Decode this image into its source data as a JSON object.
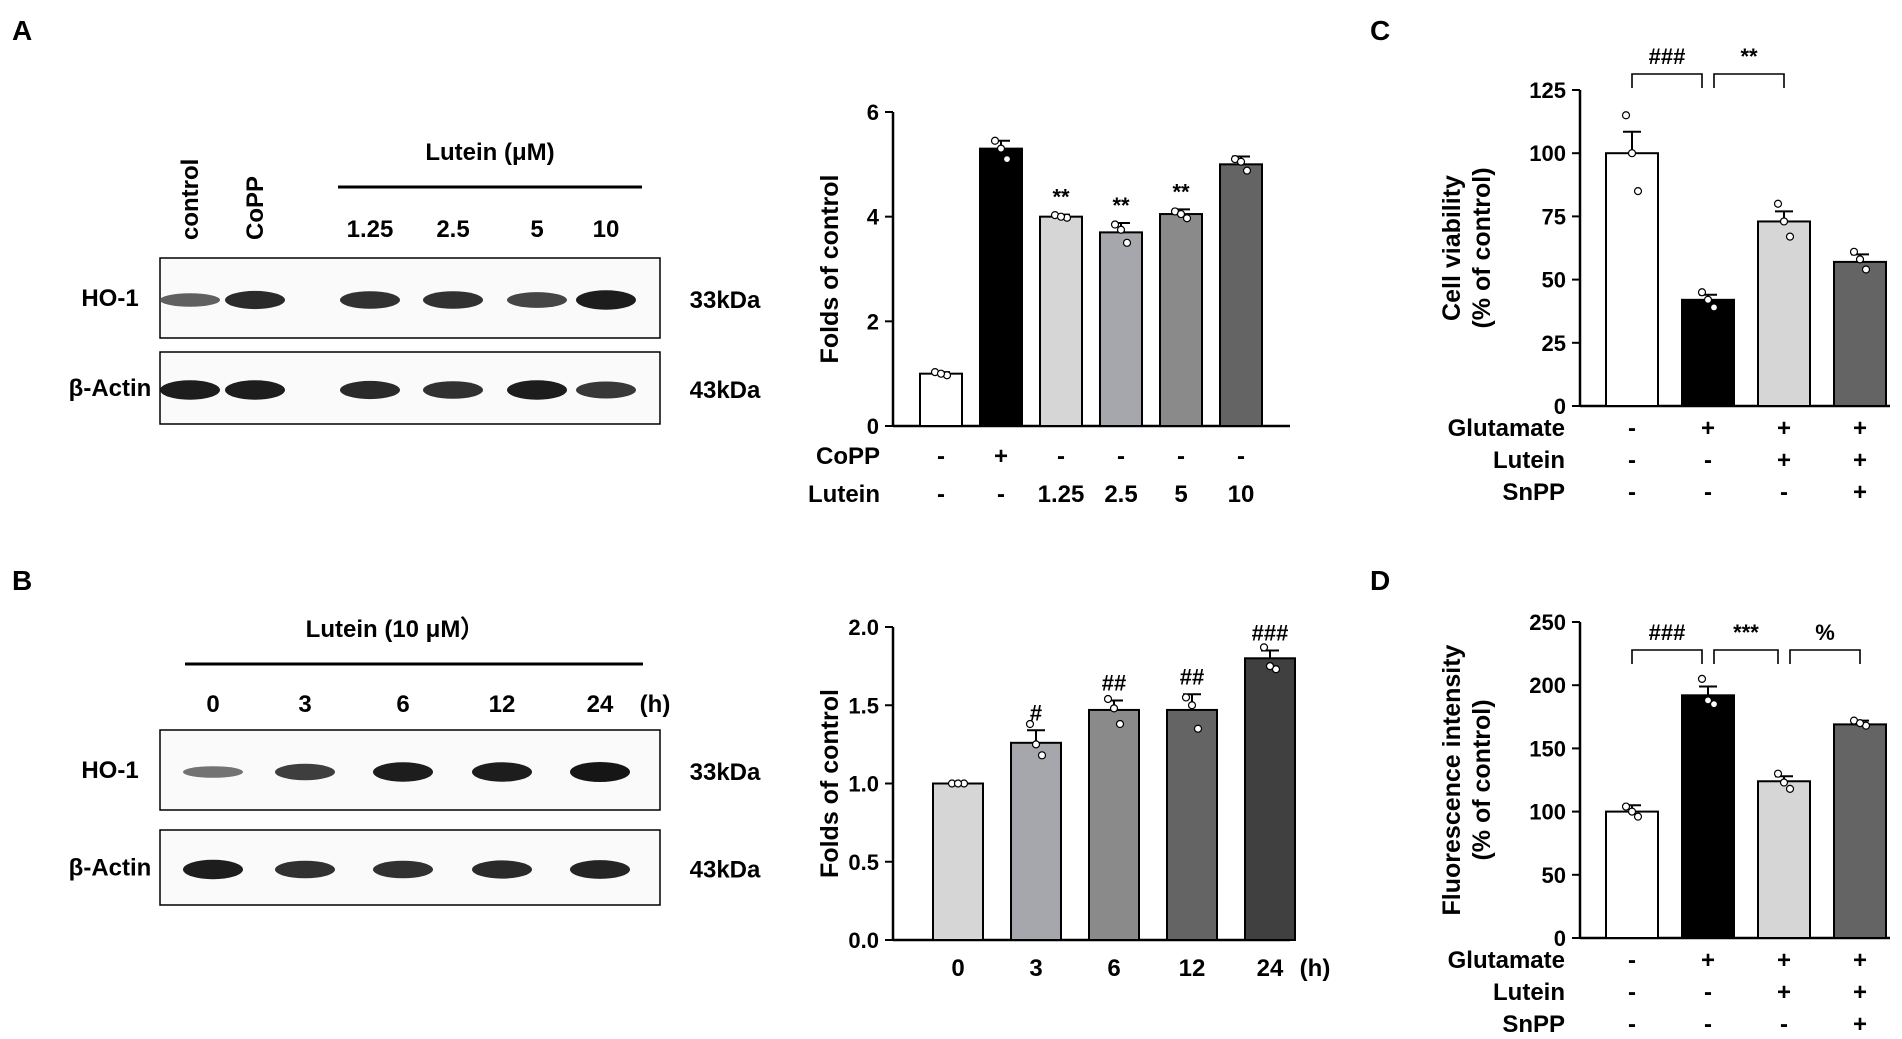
{
  "panels": {
    "A": {
      "label": "A",
      "blot": {
        "lane_labels": [
          "control",
          "CoPP"
        ],
        "group_title": "Lutein (μM)",
        "group_lanes": [
          "1.25",
          "2.5",
          "5",
          "10"
        ],
        "rows": [
          {
            "name": "HO-1",
            "mw": "33kDa",
            "intensities": [
              0.45,
              0.85,
              0.8,
              0.8,
              0.65,
              0.95
            ]
          },
          {
            "name": "β-Actin",
            "mw": "43kDa",
            "intensities": [
              0.95,
              0.95,
              0.85,
              0.8,
              0.95,
              0.75
            ]
          }
        ]
      }
    },
    "B": {
      "label": "B",
      "blot": {
        "group_title": "Lutein (10 μM）",
        "group_lanes": [
          "0",
          "3",
          "6",
          "12",
          "24"
        ],
        "unit": "(h)",
        "rows": [
          {
            "name": "HO-1",
            "mw": "33kDa",
            "intensities": [
              0.3,
              0.7,
              0.95,
              0.95,
              1.0
            ]
          },
          {
            "name": "β-Actin",
            "mw": "43kDa",
            "intensities": [
              0.95,
              0.8,
              0.8,
              0.85,
              0.9
            ]
          }
        ]
      }
    },
    "C": {
      "label": "C"
    },
    "D": {
      "label": "D"
    }
  },
  "chart_data": [
    {
      "id": "A",
      "type": "bar",
      "ylabel": "Folds of control",
      "ylim": [
        0,
        6
      ],
      "yticks": [
        0,
        2,
        4,
        6
      ],
      "values": [
        1.0,
        5.3,
        4.0,
        3.7,
        4.05,
        5.0
      ],
      "errors": [
        0.03,
        0.15,
        0.04,
        0.18,
        0.09,
        0.15
      ],
      "points": [
        [
          1.03,
          0.97,
          1.0
        ],
        [
          5.45,
          5.1,
          5.3
        ],
        [
          4.03,
          3.98,
          4.0
        ],
        [
          3.85,
          3.5,
          3.75
        ],
        [
          4.1,
          3.97,
          4.05
        ],
        [
          5.1,
          4.88,
          5.05
        ]
      ],
      "colors": [
        "#ffffff",
        "#000000",
        "#d6d6d6",
        "#a6a6ad",
        "#8a8a8a",
        "#646464"
      ],
      "annotations": [
        "",
        "",
        "**",
        "**",
        "**",
        ""
      ],
      "table": [
        {
          "label": "CoPP",
          "cells": [
            "-",
            "+",
            "-",
            "-",
            "-",
            "-"
          ]
        },
        {
          "label": "Lutein",
          "cells": [
            "-",
            "-",
            "1.25",
            "2.5",
            "5",
            "10"
          ]
        }
      ]
    },
    {
      "id": "B",
      "type": "bar",
      "ylabel": "Folds of control",
      "ylim": [
        0,
        2.0
      ],
      "yticks": [
        "0.0",
        "0.5",
        "1.0",
        "1.5",
        "2.0"
      ],
      "categories": [
        "0",
        "3",
        "6",
        "12",
        "24"
      ],
      "xunit": "(h)",
      "values": [
        1.0,
        1.26,
        1.47,
        1.47,
        1.8
      ],
      "errors": [
        0.005,
        0.08,
        0.06,
        0.1,
        0.05
      ],
      "points": [
        [
          1.0,
          1.0,
          1.0
        ],
        [
          1.38,
          1.18,
          1.25
        ],
        [
          1.54,
          1.38,
          1.48
        ],
        [
          1.55,
          1.35,
          1.5
        ],
        [
          1.87,
          1.73,
          1.75
        ]
      ],
      "colors": [
        "#d6d6d6",
        "#a6a6ad",
        "#8a8a8a",
        "#646464",
        "#404040"
      ],
      "annotations": [
        "",
        "#",
        "##",
        "##",
        "###"
      ]
    },
    {
      "id": "C",
      "type": "bar",
      "ylabel": [
        "Cell viability",
        "(% of control)"
      ],
      "ylim": [
        0,
        125
      ],
      "yticks": [
        0,
        25,
        50,
        75,
        100,
        125
      ],
      "values": [
        100,
        42,
        73,
        57
      ],
      "errors": [
        8.5,
        2,
        4,
        3
      ],
      "points": [
        [
          115,
          85,
          100
        ],
        [
          45,
          39,
          42
        ],
        [
          80,
          67,
          73
        ],
        [
          61,
          54,
          58
        ]
      ],
      "colors": [
        "#ffffff",
        "#000000",
        "#d6d6d6",
        "#646464"
      ],
      "brackets": [
        {
          "from": 0,
          "to": 1,
          "text": "###"
        },
        {
          "from": 1,
          "to": 2,
          "text": "**"
        }
      ],
      "table": [
        {
          "label": "Glutamate",
          "cells": [
            "-",
            "+",
            "+",
            "+"
          ]
        },
        {
          "label": "Lutein",
          "cells": [
            "-",
            "-",
            "+",
            "+"
          ]
        },
        {
          "label": "SnPP",
          "cells": [
            "-",
            "-",
            "-",
            "+"
          ]
        }
      ]
    },
    {
      "id": "D",
      "type": "bar",
      "ylabel": [
        "Fluorescence intensity",
        "(% of control)"
      ],
      "ylim": [
        0,
        250
      ],
      "yticks": [
        0,
        50,
        100,
        150,
        200,
        250
      ],
      "values": [
        100,
        192,
        124,
        169
      ],
      "errors": [
        5,
        7,
        4,
        3
      ],
      "points": [
        [
          104,
          96,
          100
        ],
        [
          205,
          185,
          188
        ],
        [
          130,
          118,
          123
        ],
        [
          172,
          168,
          170
        ]
      ],
      "colors": [
        "#ffffff",
        "#000000",
        "#d6d6d6",
        "#646464"
      ],
      "brackets": [
        {
          "from": 0,
          "to": 1,
          "text": "###"
        },
        {
          "from": 1,
          "to": 2,
          "text": "***"
        },
        {
          "from": 2,
          "to": 3,
          "text": "%"
        }
      ],
      "table": [
        {
          "label": "Glutamate",
          "cells": [
            "-",
            "+",
            "+",
            "+"
          ]
        },
        {
          "label": "Lutein",
          "cells": [
            "-",
            "-",
            "+",
            "+"
          ]
        },
        {
          "label": "SnPP",
          "cells": [
            "-",
            "-",
            "-",
            "+"
          ]
        }
      ]
    }
  ]
}
